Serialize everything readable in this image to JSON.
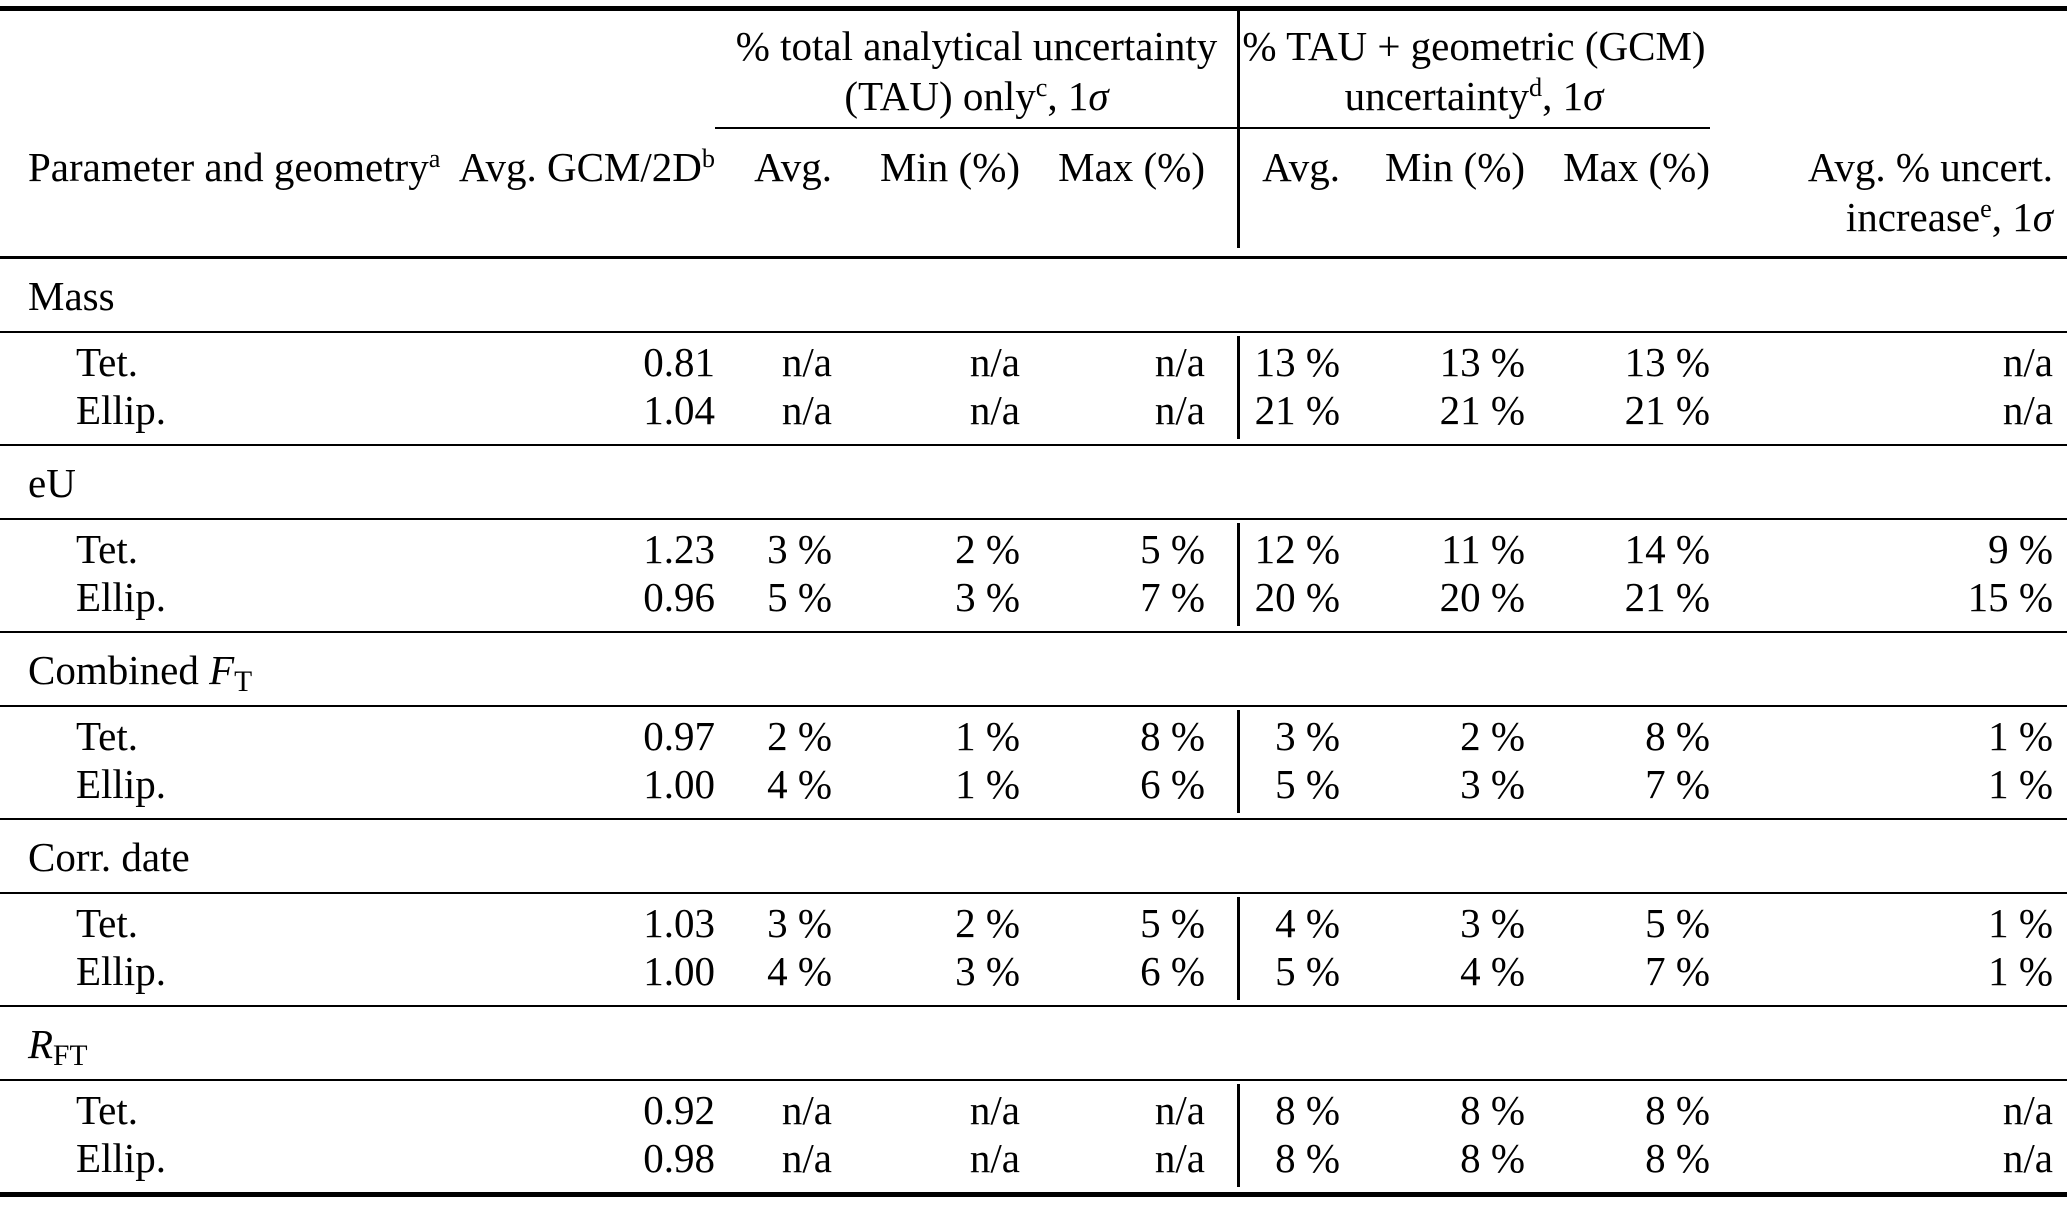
{
  "colors": {
    "ink": "#000000",
    "background": "#ffffff"
  },
  "table": {
    "header": {
      "col_param": {
        "text": "Parameter and geometry",
        "sup": "a"
      },
      "col_gcm2d": {
        "text": "Avg. GCM/2D",
        "sup": "b"
      },
      "group_tau": {
        "line1": "% total analytical uncertainty",
        "line2_pre": "(TAU) only",
        "sup": "c",
        "line2_post": ", 1",
        "sigma": "σ"
      },
      "group_gcm": {
        "line1": "% TAU + geometric (GCM)",
        "line2_pre": "uncertainty",
        "sup": "d",
        "line2_post": ", 1",
        "sigma": "σ"
      },
      "sub": {
        "avg": "Avg.",
        "min": "Min (%)",
        "max": "Max (%)"
      },
      "col_increase": {
        "line1": "Avg. % uncert.",
        "line2_pre": "increase",
        "sup": "e",
        "line2_post": ", 1",
        "sigma": "σ"
      }
    },
    "sections": [
      {
        "label": "Mass",
        "rows": [
          {
            "name": "Tet.",
            "gcm2d": "0.81",
            "tau_avg": "n/a",
            "tau_min": "n/a",
            "tau_max": "n/a",
            "gcm_avg": "13 %",
            "gcm_min": "13 %",
            "gcm_max": "13 %",
            "increase": "n/a"
          },
          {
            "name": "Ellip.",
            "gcm2d": "1.04",
            "tau_avg": "n/a",
            "tau_min": "n/a",
            "tau_max": "n/a",
            "gcm_avg": "21 %",
            "gcm_min": "21 %",
            "gcm_max": "21 %",
            "increase": "n/a"
          }
        ]
      },
      {
        "label": "eU",
        "rows": [
          {
            "name": "Tet.",
            "gcm2d": "1.23",
            "tau_avg": "3 %",
            "tau_min": "2 %",
            "tau_max": "5 %",
            "gcm_avg": "12 %",
            "gcm_min": "11 %",
            "gcm_max": "14 %",
            "increase": "9 %"
          },
          {
            "name": "Ellip.",
            "gcm2d": "0.96",
            "tau_avg": "5 %",
            "tau_min": "3 %",
            "tau_max": "7 %",
            "gcm_avg": "20 %",
            "gcm_min": "20 %",
            "gcm_max": "21 %",
            "increase": "15 %"
          }
        ]
      },
      {
        "label_pre": "Combined ",
        "label_math": "F",
        "label_sub": "T",
        "rows": [
          {
            "name": "Tet.",
            "gcm2d": "0.97",
            "tau_avg": "2 %",
            "tau_min": "1 %",
            "tau_max": "8 %",
            "gcm_avg": "3 %",
            "gcm_min": "2 %",
            "gcm_max": "8 %",
            "increase": "1 %"
          },
          {
            "name": "Ellip.",
            "gcm2d": "1.00",
            "tau_avg": "4 %",
            "tau_min": "1 %",
            "tau_max": "6 %",
            "gcm_avg": "5 %",
            "gcm_min": "3 %",
            "gcm_max": "7 %",
            "increase": "1 %"
          }
        ]
      },
      {
        "label": "Corr. date",
        "rows": [
          {
            "name": "Tet.",
            "gcm2d": "1.03",
            "tau_avg": "3 %",
            "tau_min": "2 %",
            "tau_max": "5 %",
            "gcm_avg": "4 %",
            "gcm_min": "3 %",
            "gcm_max": "5 %",
            "increase": "1 %"
          },
          {
            "name": "Ellip.",
            "gcm2d": "1.00",
            "tau_avg": "4 %",
            "tau_min": "3 %",
            "tau_max": "6 %",
            "gcm_avg": "5 %",
            "gcm_min": "4 %",
            "gcm_max": "7 %",
            "increase": "1 %"
          }
        ]
      },
      {
        "label_math": "R",
        "label_sub": "FT",
        "rows": [
          {
            "name": "Tet.",
            "gcm2d": "0.92",
            "tau_avg": "n/a",
            "tau_min": "n/a",
            "tau_max": "n/a",
            "gcm_avg": "8 %",
            "gcm_min": "8 %",
            "gcm_max": "8 %",
            "increase": "n/a"
          },
          {
            "name": "Ellip.",
            "gcm2d": "0.98",
            "tau_avg": "n/a",
            "tau_min": "n/a",
            "tau_max": "n/a",
            "gcm_avg": "8 %",
            "gcm_min": "8 %",
            "gcm_max": "8 %",
            "increase": "n/a"
          }
        ]
      }
    ]
  }
}
